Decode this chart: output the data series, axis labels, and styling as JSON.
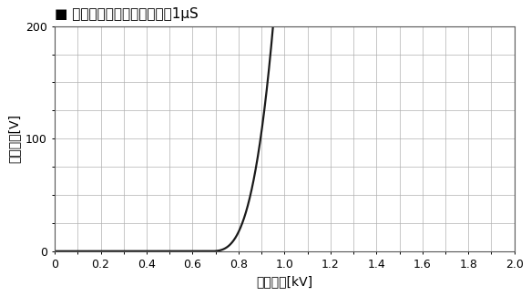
{
  "title": "■ パルス減衰特性　パルス幈1μS",
  "xlabel": "入力電圧[kV]",
  "ylabel": "出力電圧[V]",
  "xlim": [
    0,
    2.0
  ],
  "ylim": [
    0,
    200
  ],
  "xticks": [
    0,
    0.2,
    0.4,
    0.6,
    0.8,
    1.0,
    1.2,
    1.4,
    1.6,
    1.8,
    2.0
  ],
  "yticks": [
    0,
    100,
    200
  ],
  "xtick_labels": [
    "0",
    "0.2",
    "0.4",
    "0.6",
    "0.8",
    "1.0",
    "1.2",
    "1.4",
    "1.6",
    "1.8",
    "2.0"
  ],
  "ytick_labels": [
    "0",
    "100",
    "200"
  ],
  "curve_threshold": 0.67,
  "curve_power": 3.2,
  "curve_x_ref": 0.95,
  "curve_y_ref": 200,
  "line_color": "#1a1a1a",
  "line_width": 1.6,
  "grid_color": "#b0b0b0",
  "grid_linewidth": 0.5,
  "background_color": "#ffffff",
  "title_fontsize": 11,
  "axis_label_fontsize": 10,
  "tick_fontsize": 9,
  "fig_width": 5.83,
  "fig_height": 3.25,
  "dpi": 100
}
